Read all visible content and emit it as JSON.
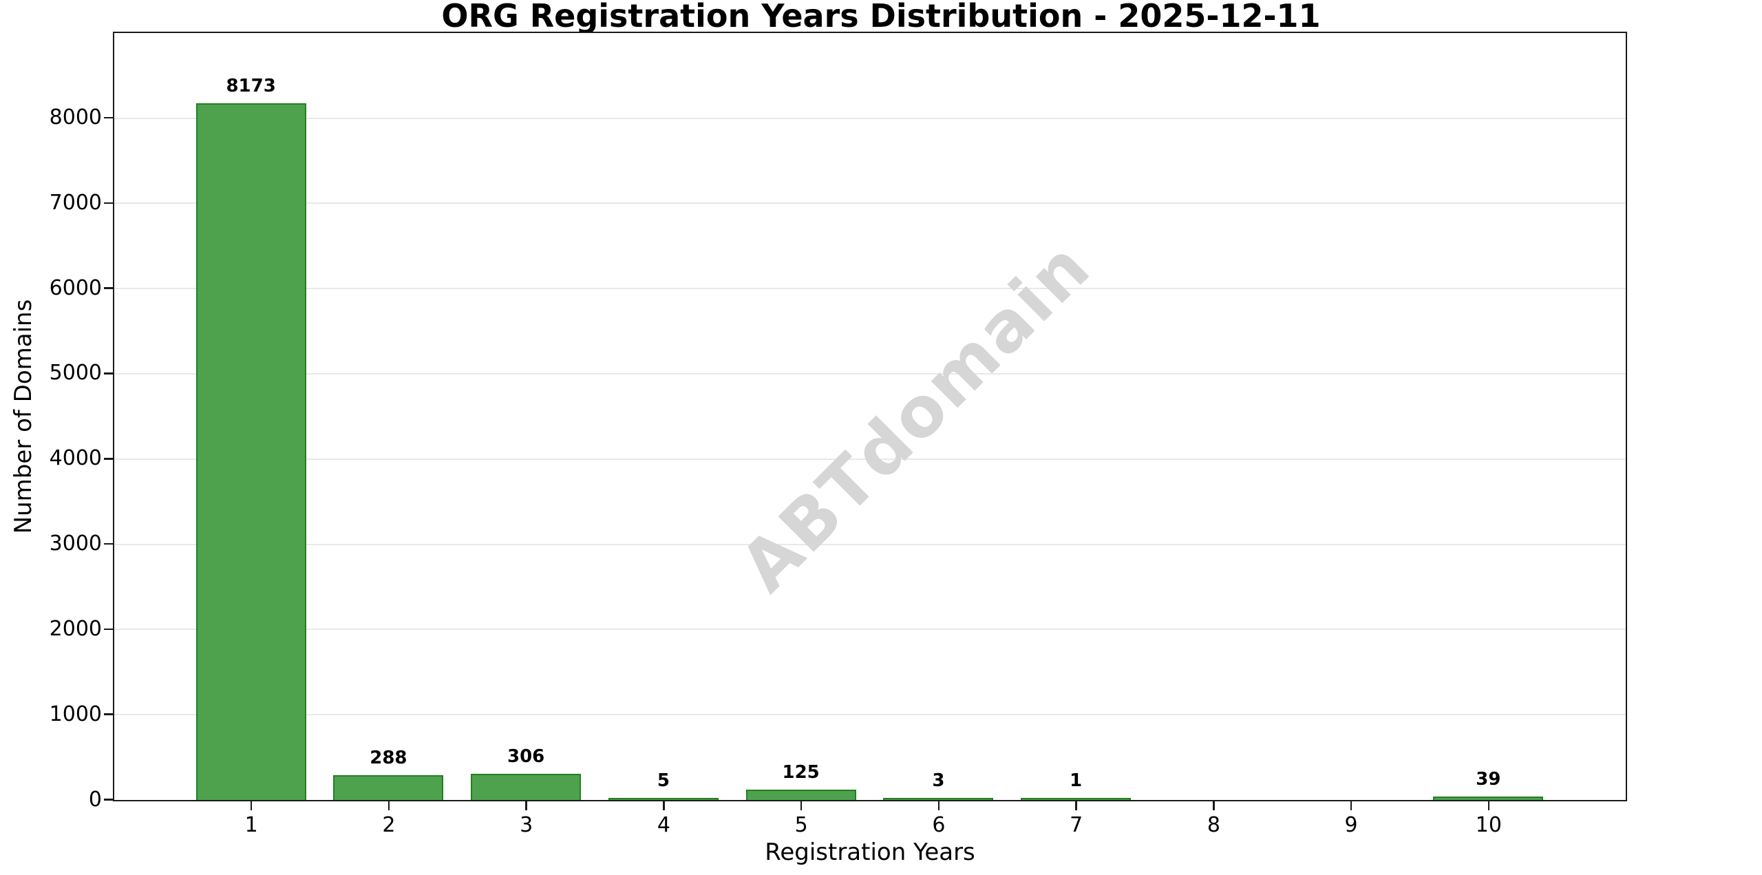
{
  "chart_data": {
    "type": "bar",
    "title": "ORG Registration Years Distribution - 2025-12-11",
    "xlabel": "Registration Years",
    "ylabel": "Number of Domains",
    "categories": [
      "1",
      "2",
      "3",
      "4",
      "5",
      "6",
      "7",
      "8",
      "9",
      "10"
    ],
    "values": [
      8173,
      288,
      306,
      5,
      125,
      3,
      1,
      0,
      0,
      39
    ],
    "bar_labels": [
      "8173",
      "288",
      "306",
      "5",
      "125",
      "3",
      "1",
      "",
      "",
      "39"
    ],
    "ylim": [
      0,
      8990
    ],
    "yticks": [
      0,
      1000,
      2000,
      3000,
      4000,
      5000,
      6000,
      7000,
      8000
    ],
    "grid": "horizontal-only",
    "legend_position": "none",
    "bar_color": "#4ea24e",
    "bar_edge_color": "#23801f",
    "gridline_color": "#e8e8e8",
    "watermark": "ABTdomain",
    "watermark_color": "#d6d6d6",
    "background_color": "#ffffff"
  }
}
